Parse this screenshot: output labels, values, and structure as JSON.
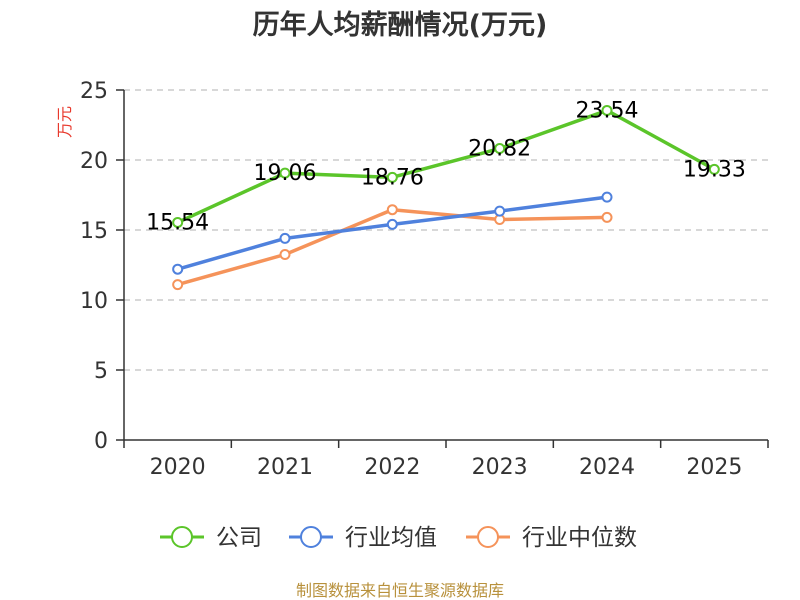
{
  "chart_data": {
    "type": "line",
    "title": "历年人均薪酬情况(万元)",
    "ylabel": "万元",
    "xlabel": "",
    "categories": [
      "2020",
      "2021",
      "2022",
      "2023",
      "2024",
      "2025"
    ],
    "ylim": [
      0,
      25
    ],
    "yticks": [
      0,
      5,
      10,
      15,
      20,
      25
    ],
    "grid": true,
    "legend_position": "bottom",
    "series": [
      {
        "name": "公司",
        "color": "#5bc52a",
        "values": [
          15.54,
          19.06,
          18.76,
          20.82,
          23.54,
          19.33
        ],
        "labels": [
          "15.54",
          "19.06",
          "18.76",
          "20.82",
          "23.54",
          "19.33"
        ]
      },
      {
        "name": "行业均值",
        "color": "#4f81dd",
        "values": [
          12.2,
          14.4,
          15.4,
          16.35,
          17.35,
          null
        ]
      },
      {
        "name": "行业中位数",
        "color": "#f5935a",
        "values": [
          11.1,
          13.25,
          16.45,
          15.75,
          15.9,
          null
        ]
      }
    ]
  },
  "source_note": "制图数据来自恒生聚源数据库"
}
